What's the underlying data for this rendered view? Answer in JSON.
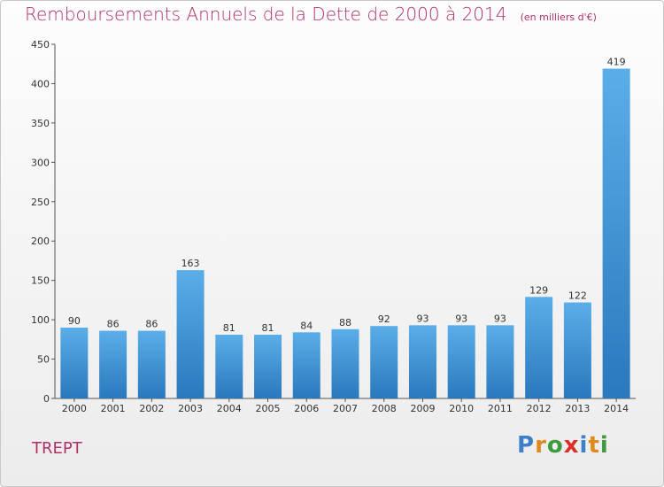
{
  "chart_data": {
    "type": "bar",
    "title": "Remboursements Annuels de la Dette de 2000 à 2014",
    "subtitle": "(en milliers d'€)",
    "categories": [
      "2000",
      "2001",
      "2002",
      "2003",
      "2004",
      "2005",
      "2006",
      "2007",
      "2008",
      "2009",
      "2010",
      "2011",
      "2012",
      "2013",
      "2014"
    ],
    "values": [
      90,
      86,
      86,
      163,
      81,
      81,
      84,
      88,
      92,
      93,
      93,
      93,
      129,
      122,
      419
    ],
    "ylim": [
      0,
      450
    ],
    "yticks": [
      0,
      50,
      100,
      150,
      200,
      250,
      300,
      350,
      400,
      450
    ],
    "grid": false,
    "bar_color": "#3a8fd6"
  },
  "place_name": "TREPT",
  "logo": {
    "letters": [
      "P",
      "r",
      "o",
      "x",
      "i",
      "t",
      "i"
    ]
  }
}
